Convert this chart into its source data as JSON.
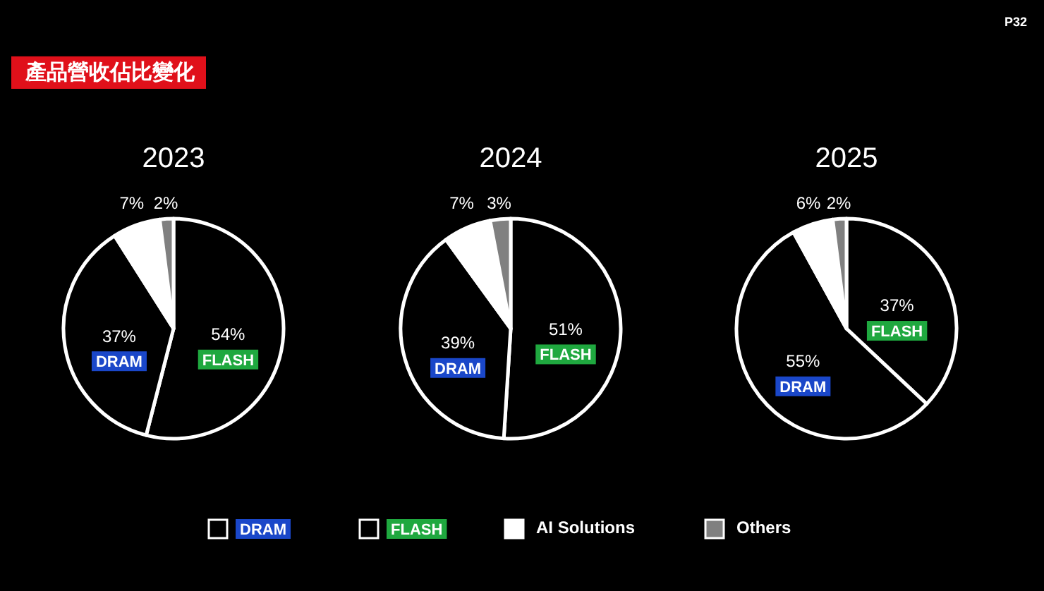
{
  "chart_data": [
    {
      "type": "pie",
      "title": "2023",
      "categories": [
        "FLASH",
        "DRAM",
        "AI Solutions",
        "Others"
      ],
      "values": [
        54,
        37,
        7,
        2
      ],
      "value_labels": [
        "54%",
        "37%",
        "7%",
        "2%"
      ],
      "colors": [
        "#000000",
        "#000000",
        "#ffffff",
        "#808080"
      ],
      "legend": "bottom",
      "annotations": [
        "產品營收佔比變化",
        "P32"
      ]
    },
    {
      "type": "pie",
      "title": "2024",
      "categories": [
        "FLASH",
        "DRAM",
        null,
        null
      ],
      "values": [
        51,
        39,
        7,
        3
      ],
      "value_labels": [
        "51%",
        "39%",
        "7%",
        "3%"
      ],
      "colors": [
        "#000000",
        "#000000",
        "#ffffff",
        "#808080"
      ]
    },
    {
      "type": "pie",
      "title": "2025",
      "categories": [
        "FLASH",
        "DRAM",
        null,
        null
      ],
      "values": [
        37,
        55,
        6,
        2
      ],
      "value_labels": [
        "37%",
        "55%",
        "6%",
        "2%"
      ],
      "colors": [
        "#000000",
        "#000000",
        "#ffffff",
        "#808080"
      ]
    }
  ]
}
